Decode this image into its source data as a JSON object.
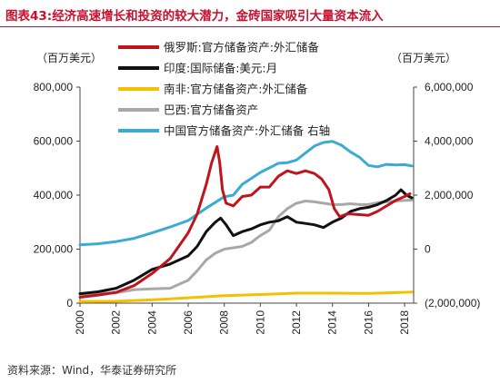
{
  "figure": {
    "number": "图表43:",
    "title": "经济高速增长和投资的较大潜力，金砖国家吸引大量资本流入",
    "source": "资料来源：Wind，华泰证券研究所"
  },
  "chart_data": {
    "type": "line",
    "left_unit": "（百万美元）",
    "right_unit": "（百万美元）",
    "x_ticks": [
      "2000",
      "2002",
      "2004",
      "2006",
      "2008",
      "2010",
      "2012",
      "2014",
      "2016",
      "2018"
    ],
    "xlim": [
      2000,
      2018.5
    ],
    "y_left": {
      "ylim": [
        0,
        800000
      ],
      "ticks": [
        "0",
        "200,000",
        "400,000",
        "600,000",
        "800,000"
      ],
      "tick_values": [
        0,
        200000,
        400000,
        600000,
        800000
      ]
    },
    "y_right": {
      "ylim": [
        -2000000,
        6000000
      ],
      "ticks": [
        "(2,000,000)",
        "0",
        "2,000,000",
        "4,000,000",
        "6,000,000"
      ],
      "tick_values": [
        -2000000,
        0,
        2000000,
        4000000,
        6000000
      ]
    },
    "legend_position": "top-center",
    "grid": false,
    "series": [
      {
        "name": "俄罗斯:官方储备资产:外汇储备",
        "color": "#c0141c",
        "axis": "left",
        "points": [
          [
            2000,
            22000
          ],
          [
            2001,
            30000
          ],
          [
            2002,
            40000
          ],
          [
            2003,
            65000
          ],
          [
            2004,
            110000
          ],
          [
            2005,
            165000
          ],
          [
            2006,
            260000
          ],
          [
            2006.5,
            330000
          ],
          [
            2007,
            440000
          ],
          [
            2007.3,
            520000
          ],
          [
            2007.6,
            580000
          ],
          [
            2007.75,
            520000
          ],
          [
            2007.9,
            420000
          ],
          [
            2008.1,
            370000
          ],
          [
            2008.5,
            360000
          ],
          [
            2009,
            395000
          ],
          [
            2009.5,
            400000
          ],
          [
            2010,
            430000
          ],
          [
            2010.5,
            430000
          ],
          [
            2011,
            470000
          ],
          [
            2011.5,
            490000
          ],
          [
            2012,
            480000
          ],
          [
            2012.5,
            490000
          ],
          [
            2013,
            480000
          ],
          [
            2013.4,
            460000
          ],
          [
            2013.8,
            420000
          ],
          [
            2014.1,
            350000
          ],
          [
            2014.4,
            320000
          ],
          [
            2014.8,
            330000
          ],
          [
            2015,
            330000
          ],
          [
            2016,
            325000
          ],
          [
            2016.5,
            340000
          ],
          [
            2017,
            360000
          ],
          [
            2017.5,
            380000
          ],
          [
            2018,
            395000
          ],
          [
            2018.3,
            405000
          ]
        ]
      },
      {
        "name": "印度:国际储备:美元:月",
        "color": "#111111",
        "axis": "left",
        "points": [
          [
            2000,
            35000
          ],
          [
            2001,
            42000
          ],
          [
            2002,
            55000
          ],
          [
            2003,
            85000
          ],
          [
            2004,
            125000
          ],
          [
            2005,
            145000
          ],
          [
            2006,
            175000
          ],
          [
            2006.5,
            210000
          ],
          [
            2007,
            265000
          ],
          [
            2007.5,
            300000
          ],
          [
            2007.8,
            315000
          ],
          [
            2008.1,
            290000
          ],
          [
            2008.5,
            250000
          ],
          [
            2009,
            265000
          ],
          [
            2009.5,
            275000
          ],
          [
            2010,
            290000
          ],
          [
            2010.5,
            300000
          ],
          [
            2011,
            305000
          ],
          [
            2011.5,
            320000
          ],
          [
            2012,
            300000
          ],
          [
            2012.5,
            295000
          ],
          [
            2013,
            290000
          ],
          [
            2013.5,
            280000
          ],
          [
            2014,
            300000
          ],
          [
            2014.5,
            315000
          ],
          [
            2015,
            340000
          ],
          [
            2015.5,
            350000
          ],
          [
            2016,
            355000
          ],
          [
            2016.5,
            365000
          ],
          [
            2017,
            380000
          ],
          [
            2017.5,
            400000
          ],
          [
            2017.8,
            420000
          ],
          [
            2018.1,
            400000
          ],
          [
            2018.4,
            390000
          ]
        ]
      },
      {
        "name": "南非:官方储备资产:外汇储备",
        "color": "#f5c000",
        "axis": "left",
        "points": [
          [
            2000,
            6000
          ],
          [
            2002,
            7000
          ],
          [
            2004,
            12000
          ],
          [
            2006,
            20000
          ],
          [
            2008,
            28000
          ],
          [
            2010,
            32000
          ],
          [
            2012,
            37000
          ],
          [
            2014,
            37000
          ],
          [
            2016,
            36000
          ],
          [
            2018,
            40000
          ],
          [
            2018.4,
            41000
          ]
        ]
      },
      {
        "name": "巴西:官方储备资产",
        "color": "#a8a8a8",
        "axis": "left",
        "points": [
          [
            2000,
            32000
          ],
          [
            2001,
            36000
          ],
          [
            2002,
            38000
          ],
          [
            2003,
            50000
          ],
          [
            2004,
            53000
          ],
          [
            2005,
            55000
          ],
          [
            2006,
            85000
          ],
          [
            2006.5,
            120000
          ],
          [
            2007,
            160000
          ],
          [
            2007.5,
            185000
          ],
          [
            2008,
            200000
          ],
          [
            2008.5,
            205000
          ],
          [
            2009,
            210000
          ],
          [
            2009.5,
            225000
          ],
          [
            2010,
            250000
          ],
          [
            2010.5,
            270000
          ],
          [
            2011,
            320000
          ],
          [
            2011.5,
            350000
          ],
          [
            2012,
            370000
          ],
          [
            2012.5,
            378000
          ],
          [
            2013,
            375000
          ],
          [
            2013.5,
            370000
          ],
          [
            2014,
            365000
          ],
          [
            2014.5,
            365000
          ],
          [
            2015,
            368000
          ],
          [
            2015.5,
            365000
          ],
          [
            2016,
            365000
          ],
          [
            2016.5,
            372000
          ],
          [
            2017,
            375000
          ],
          [
            2017.5,
            378000
          ],
          [
            2018,
            380000
          ],
          [
            2018.4,
            382000
          ]
        ]
      },
      {
        "name": "中国官方储备资产:外汇储备 右轴",
        "color": "#3cabd0",
        "axis": "right",
        "points": [
          [
            2000,
            160000
          ],
          [
            2001,
            200000
          ],
          [
            2002,
            280000
          ],
          [
            2003,
            400000
          ],
          [
            2004,
            600000
          ],
          [
            2005,
            820000
          ],
          [
            2006,
            1060000
          ],
          [
            2007,
            1520000
          ],
          [
            2008,
            1940000
          ],
          [
            2008.5,
            2000000
          ],
          [
            2009,
            2400000
          ],
          [
            2010,
            2840000
          ],
          [
            2011,
            3180000
          ],
          [
            2011.5,
            3200000
          ],
          [
            2012,
            3300000
          ],
          [
            2013,
            3820000
          ],
          [
            2013.5,
            3950000
          ],
          [
            2014,
            3990000
          ],
          [
            2014.5,
            3850000
          ],
          [
            2015,
            3600000
          ],
          [
            2015.5,
            3400000
          ],
          [
            2016,
            3100000
          ],
          [
            2016.5,
            3050000
          ],
          [
            2017,
            3140000
          ],
          [
            2017.5,
            3120000
          ],
          [
            2018,
            3130000
          ],
          [
            2018.4,
            3080000
          ]
        ]
      }
    ]
  }
}
